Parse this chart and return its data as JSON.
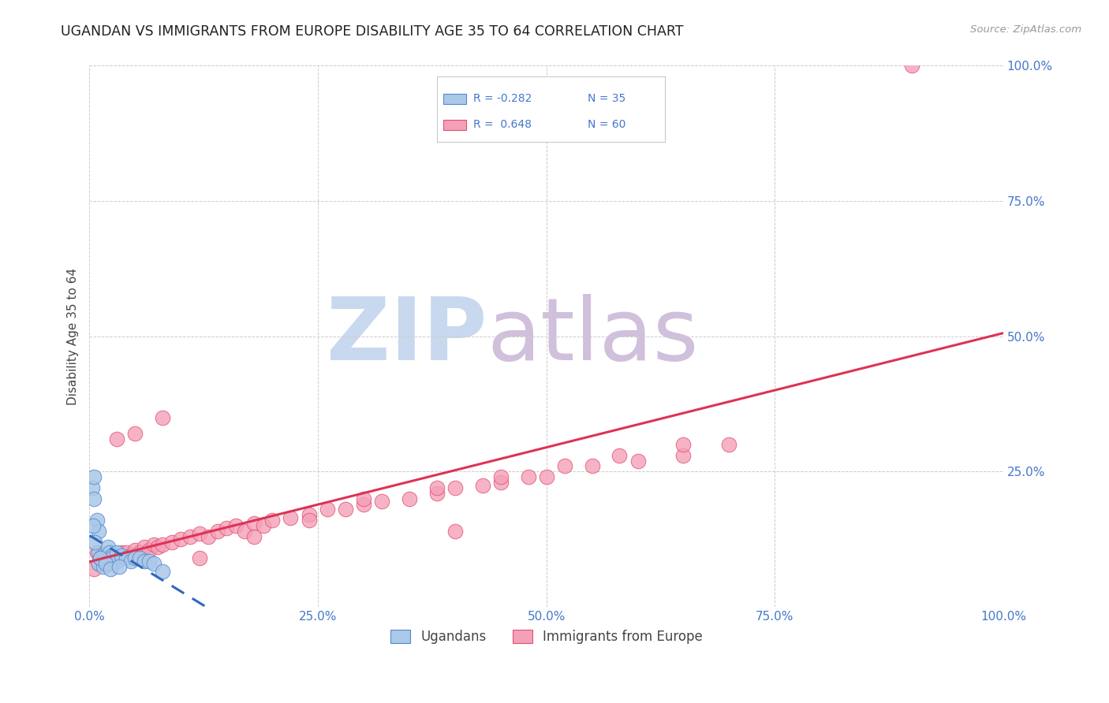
{
  "title": "UGANDAN VS IMMIGRANTS FROM EUROPE DISABILITY AGE 35 TO 64 CORRELATION CHART",
  "source": "Source: ZipAtlas.com",
  "ylabel": "Disability Age 35 to 64",
  "xlim": [
    0,
    100
  ],
  "ylim": [
    0,
    100
  ],
  "xticks": [
    0,
    25,
    50,
    75,
    100
  ],
  "yticks": [
    0,
    25,
    50,
    75,
    100
  ],
  "xticklabels": [
    "0.0%",
    "25.0%",
    "50.0%",
    "75.0%",
    "100.0%"
  ],
  "right_yticklabels": [
    "",
    "25.0%",
    "50.0%",
    "75.0%",
    "100.0%"
  ],
  "ugandan_color": "#aac8e8",
  "europe_color": "#f4a0b8",
  "ugandan_edge_color": "#5588cc",
  "europe_edge_color": "#e05070",
  "ugandan_line_color": "#3366bb",
  "europe_line_color": "#dd3355",
  "legend_label_ugandan": "Ugandans",
  "legend_label_europe": "Immigrants from Europe",
  "background_color": "#ffffff",
  "grid_color": "#cccccc",
  "title_color": "#222222",
  "axis_label_color": "#444444",
  "tick_color": "#4477cc",
  "watermark_ZIP_color": "#c8d8ee",
  "watermark_atlas_color": "#d0c0dc",
  "ugandan_x": [
    0.3,
    0.5,
    0.5,
    0.8,
    1.0,
    1.0,
    1.0,
    1.2,
    1.5,
    1.5,
    1.5,
    1.8,
    2.0,
    2.0,
    2.0,
    2.2,
    2.5,
    2.5,
    3.0,
    3.0,
    3.5,
    4.0,
    4.5,
    5.0,
    5.5,
    6.0,
    6.5,
    7.0,
    0.4,
    0.6,
    1.2,
    1.8,
    2.3,
    3.2,
    8.0
  ],
  "ugandan_y": [
    22.0,
    20.0,
    24.0,
    16.0,
    14.0,
    10.0,
    8.0,
    9.0,
    9.5,
    8.5,
    7.5,
    9.0,
    11.0,
    9.0,
    8.0,
    10.0,
    9.5,
    9.0,
    10.0,
    8.5,
    9.5,
    9.0,
    8.5,
    9.0,
    9.0,
    8.5,
    8.5,
    8.0,
    15.0,
    12.0,
    9.0,
    8.0,
    7.0,
    7.5,
    6.5
  ],
  "europe_x": [
    0.5,
    1.0,
    1.5,
    2.0,
    2.5,
    3.0,
    3.5,
    4.0,
    4.5,
    5.0,
    5.5,
    6.0,
    6.5,
    7.0,
    7.5,
    8.0,
    9.0,
    10.0,
    11.0,
    12.0,
    13.0,
    14.0,
    15.0,
    16.0,
    17.0,
    18.0,
    19.0,
    20.0,
    22.0,
    24.0,
    26.0,
    28.0,
    30.0,
    32.0,
    35.0,
    38.0,
    40.0,
    43.0,
    45.0,
    48.0,
    50.0,
    55.0,
    60.0,
    65.0,
    70.0,
    3.0,
    5.0,
    8.0,
    12.0,
    18.0,
    24.0,
    30.0,
    38.0,
    45.0,
    52.0,
    58.0,
    65.0,
    0.8,
    90.0,
    40.0
  ],
  "europe_y": [
    7.0,
    8.0,
    8.5,
    9.0,
    9.5,
    9.0,
    10.0,
    10.0,
    9.5,
    10.5,
    10.0,
    11.0,
    10.5,
    11.5,
    11.0,
    11.5,
    12.0,
    12.5,
    13.0,
    13.5,
    13.0,
    14.0,
    14.5,
    15.0,
    14.0,
    15.5,
    15.0,
    16.0,
    16.5,
    17.0,
    18.0,
    18.0,
    19.0,
    19.5,
    20.0,
    21.0,
    22.0,
    22.5,
    23.0,
    24.0,
    24.0,
    26.0,
    27.0,
    28.0,
    30.0,
    31.0,
    32.0,
    35.0,
    9.0,
    13.0,
    16.0,
    20.0,
    22.0,
    24.0,
    26.0,
    28.0,
    30.0,
    10.0,
    100.0,
    14.0
  ]
}
